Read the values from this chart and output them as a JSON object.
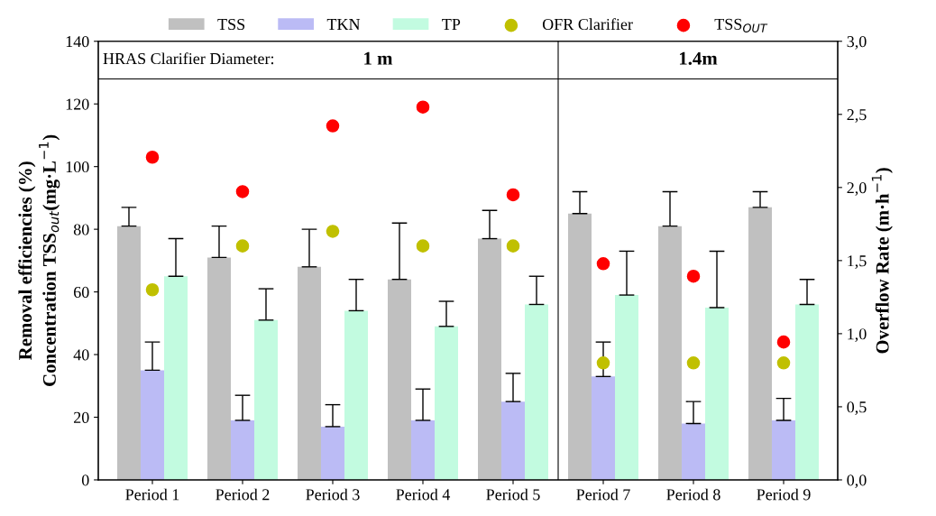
{
  "chart_data": {
    "type": "bar",
    "categories": [
      "Period 1",
      "Period 2",
      "Period 3",
      "Period 4",
      "Period 5",
      "Period 7",
      "Period 8",
      "Period 9"
    ],
    "ylabel": "Removal efficiencies (%)\nConcentration TSS$_{out}$(mg·L$^{−1}$)",
    "y2label": "Overflow Rate (m·h$^{−1}$)",
    "ylim": [
      0,
      140
    ],
    "yticks": [
      0,
      20,
      40,
      60,
      80,
      100,
      120,
      140
    ],
    "y2lim": [
      0,
      3
    ],
    "y2ticks": [
      {
        "value": 0,
        "label": "0,0"
      },
      {
        "value": 0.5,
        "label": "0,5"
      },
      {
        "value": 1,
        "label": "1,0"
      },
      {
        "value": 1.5,
        "label": "1,5"
      },
      {
        "value": 2,
        "label": "2,0"
      },
      {
        "value": 2.5,
        "label": "2,5"
      },
      {
        "value": 3,
        "label": "3,0"
      }
    ],
    "legend": "top",
    "grid": false,
    "series": [
      {
        "name": "TSS",
        "color": "#c0c0c0",
        "values": [
          81,
          71,
          68,
          64,
          77,
          85,
          81,
          87
        ],
        "errors": [
          [
            81,
            87
          ],
          [
            71,
            81
          ],
          [
            68,
            80
          ],
          [
            64,
            82
          ],
          [
            77,
            86
          ],
          [
            85,
            92
          ],
          [
            81,
            92
          ],
          [
            87,
            92
          ]
        ]
      },
      {
        "name": "TKN",
        "color": "#bbbbf5",
        "values": [
          35,
          19,
          17,
          19,
          25,
          33,
          18,
          19
        ],
        "errors": [
          [
            35,
            44
          ],
          [
            19,
            27
          ],
          [
            17,
            24
          ],
          [
            19,
            29
          ],
          [
            25,
            34
          ],
          [
            33,
            44
          ],
          [
            18,
            25
          ],
          [
            19,
            26
          ]
        ]
      },
      {
        "name": "TP",
        "color": "#c2fbe0",
        "values": [
          65,
          51,
          54,
          49,
          56,
          59,
          55,
          56
        ],
        "errors": [
          [
            65,
            77
          ],
          [
            51,
            61
          ],
          [
            54,
            64
          ],
          [
            49,
            57
          ],
          [
            56,
            65
          ],
          [
            59,
            73
          ],
          [
            55,
            73
          ],
          [
            56,
            64
          ]
        ]
      },
      {
        "name": "OFR Clarifier",
        "type": "scatter",
        "axis": "y2",
        "marker": "circle",
        "color": "#c0c000",
        "values": [
          1.3,
          1.6,
          1.7,
          1.6,
          1.6,
          0.8,
          0.8,
          0.8
        ]
      },
      {
        "name": "TSS$_{OUT}$",
        "type": "scatter",
        "marker": "circle",
        "color": "#ff0000",
        "values": [
          103,
          92,
          113,
          119,
          91,
          69,
          65,
          44
        ]
      }
    ],
    "ref_lines": [
      {
        "axis": "y",
        "value": 128,
        "color": "#000000"
      }
    ],
    "annotations": [
      "HRAS Clarifier Diameter:",
      "1 m",
      "1.4m"
    ]
  }
}
